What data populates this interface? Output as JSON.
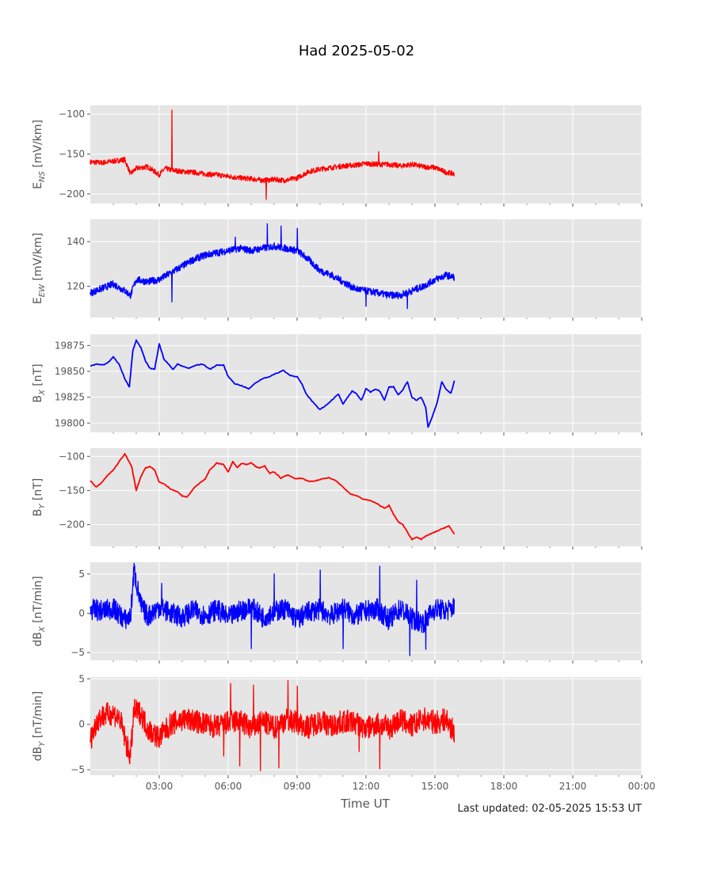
{
  "title": "Had 2025-05-02",
  "xlabel": "Time UT",
  "last_updated": "Last updated: 02-05-2025 15:53 UT",
  "chart_data": [
    {
      "type": "line",
      "id": "ens",
      "ylabel_main": "E",
      "ylabel_sub": "NS",
      "ylabel_unit": " [mV/km]",
      "color": "#ff0000",
      "xlim": [
        0,
        24
      ],
      "ylim": [
        -212,
        -89
      ],
      "yticks": [
        -100,
        -150,
        -200
      ],
      "grid": true,
      "noise": 3.2,
      "x": [
        0,
        0.5,
        1.0,
        1.5,
        1.75,
        2.0,
        2.5,
        3.0,
        3.25,
        3.5,
        4.0,
        4.5,
        5.0,
        5.5,
        6.0,
        6.5,
        7.0,
        7.5,
        8.0,
        8.5,
        9.0,
        9.5,
        10.0,
        10.5,
        11.0,
        11.5,
        12.0,
        12.5,
        13.0,
        13.5,
        14.0,
        14.5,
        15.0,
        15.5,
        15.85
      ],
      "y": [
        -160,
        -161,
        -159,
        -157,
        -175,
        -168,
        -166,
        -176,
        -168,
        -170,
        -172,
        -173,
        -175,
        -176,
        -178,
        -180,
        -181,
        -183,
        -182,
        -183,
        -180,
        -172,
        -169,
        -167,
        -165,
        -164,
        -162,
        -163,
        -163,
        -165,
        -163,
        -166,
        -167,
        -173,
        -175
      ],
      "spikes": [
        [
          3.55,
          -95
        ],
        [
          7.65,
          -207
        ],
        [
          12.55,
          -147
        ]
      ]
    },
    {
      "type": "line",
      "id": "eew",
      "ylabel_main": "E",
      "ylabel_sub": "EW",
      "ylabel_unit": " [mV/km]",
      "color": "#0000ff",
      "xlim": [
        0,
        24
      ],
      "ylim": [
        106,
        150
      ],
      "yticks": [
        120,
        140
      ],
      "grid": true,
      "noise": 1.6,
      "x": [
        0,
        0.5,
        1.0,
        1.5,
        1.75,
        2.0,
        2.5,
        3.0,
        3.5,
        4.0,
        4.5,
        5.0,
        5.5,
        6.0,
        6.5,
        7.0,
        7.5,
        8.0,
        8.5,
        9.0,
        9.5,
        10.0,
        10.5,
        11.0,
        11.5,
        12.0,
        12.5,
        13.0,
        13.5,
        14.0,
        14.5,
        15.0,
        15.5,
        15.85
      ],
      "y": [
        117,
        119,
        121,
        118,
        116,
        123,
        122,
        123,
        126,
        129,
        132,
        134,
        135,
        136,
        137,
        136,
        137,
        138,
        137,
        136,
        132,
        127,
        125,
        122,
        119,
        118,
        117,
        116,
        116,
        118,
        120,
        123,
        125,
        124
      ],
      "spikes": [
        [
          7.7,
          148
        ],
        [
          8.3,
          147
        ],
        [
          9.0,
          146
        ],
        [
          3.55,
          113
        ],
        [
          12.0,
          111
        ],
        [
          13.8,
          110
        ],
        [
          6.3,
          142
        ]
      ]
    },
    {
      "type": "line",
      "id": "bx",
      "ylabel_main": "B",
      "ylabel_sub": "X",
      "ylabel_unit": " [nT]",
      "color": "#0000ff",
      "xlim": [
        0,
        24
      ],
      "ylim": [
        19791,
        19886
      ],
      "yticks": [
        19800,
        19825,
        19850,
        19875
      ],
      "grid": true,
      "noise": 0,
      "x": [
        0,
        0.25,
        0.5,
        0.75,
        1.0,
        1.25,
        1.5,
        1.7,
        1.85,
        2.0,
        2.2,
        2.4,
        2.6,
        2.8,
        3.0,
        3.2,
        3.4,
        3.6,
        3.8,
        4.0,
        4.3,
        4.6,
        4.9,
        5.2,
        5.5,
        5.8,
        6.0,
        6.3,
        6.6,
        6.9,
        7.2,
        7.5,
        7.8,
        8.1,
        8.4,
        8.7,
        9.0,
        9.2,
        9.4,
        9.7,
        10.0,
        10.3,
        10.6,
        10.8,
        11.0,
        11.2,
        11.4,
        11.6,
        11.8,
        12.0,
        12.2,
        12.4,
        12.6,
        12.8,
        13.0,
        13.2,
        13.4,
        13.6,
        13.8,
        14.0,
        14.2,
        14.4,
        14.6,
        14.7,
        14.9,
        15.1,
        15.3,
        15.5,
        15.7,
        15.85
      ],
      "y": [
        19855,
        19857,
        19856,
        19858,
        19864,
        19857,
        19843,
        19835,
        19870,
        19880,
        19873,
        19860,
        19853,
        19852,
        19877,
        19862,
        19857,
        19852,
        19857,
        19855,
        19853,
        19856,
        19857,
        19852,
        19856,
        19856,
        19845,
        19838,
        19836,
        19833,
        19839,
        19843,
        19845,
        19848,
        19851,
        19846,
        19845,
        19838,
        19828,
        19820,
        19813,
        19818,
        19824,
        19828,
        19818,
        19825,
        19831,
        19828,
        19822,
        19833,
        19830,
        19833,
        19831,
        19822,
        19835,
        19835,
        19827,
        19832,
        19840,
        19825,
        19822,
        19825,
        19815,
        19796,
        19807,
        19820,
        19840,
        19832,
        19829,
        19841
      ],
      "spikes": []
    },
    {
      "type": "line",
      "id": "by",
      "ylabel_main": "B",
      "ylabel_sub": "Y",
      "ylabel_unit": " [nT]",
      "color": "#ff0000",
      "xlim": [
        0,
        24
      ],
      "ylim": [
        -232,
        -88
      ],
      "yticks": [
        -100,
        -150,
        -200
      ],
      "grid": true,
      "noise": 0,
      "x": [
        0,
        0.25,
        0.5,
        0.75,
        1.0,
        1.25,
        1.5,
        1.8,
        2.0,
        2.2,
        2.4,
        2.6,
        2.8,
        3.0,
        3.2,
        3.5,
        3.8,
        4.0,
        4.2,
        4.5,
        4.8,
        5.0,
        5.2,
        5.5,
        5.8,
        6.0,
        6.2,
        6.4,
        6.6,
        6.8,
        7.0,
        7.2,
        7.4,
        7.6,
        7.8,
        8.0,
        8.3,
        8.6,
        8.9,
        9.2,
        9.5,
        9.8,
        10.1,
        10.4,
        10.7,
        11.0,
        11.3,
        11.6,
        11.9,
        12.2,
        12.5,
        12.8,
        13.0,
        13.2,
        13.4,
        13.6,
        13.8,
        14.0,
        14.2,
        14.4,
        14.6,
        14.8,
        15.0,
        15.2,
        15.4,
        15.6,
        15.85
      ],
      "y": [
        -135,
        -145,
        -138,
        -128,
        -120,
        -108,
        -96,
        -115,
        -150,
        -130,
        -117,
        -115,
        -120,
        -138,
        -140,
        -148,
        -152,
        -158,
        -160,
        -147,
        -138,
        -133,
        -120,
        -110,
        -112,
        -123,
        -108,
        -116,
        -110,
        -112,
        -109,
        -115,
        -117,
        -114,
        -125,
        -123,
        -132,
        -127,
        -133,
        -132,
        -137,
        -136,
        -133,
        -131,
        -136,
        -145,
        -155,
        -158,
        -163,
        -165,
        -170,
        -176,
        -172,
        -185,
        -196,
        -200,
        -211,
        -222,
        -218,
        -222,
        -217,
        -214,
        -211,
        -208,
        -205,
        -202,
        -214
      ],
      "spikes": []
    },
    {
      "type": "line",
      "id": "dbx",
      "ylabel_main": "dB",
      "ylabel_sub": "X",
      "ylabel_unit": " [nT/min]",
      "color": "#0000ff",
      "xlim": [
        0,
        24
      ],
      "ylim": [
        -6,
        6.5
      ],
      "yticks": [
        5,
        0,
        -5
      ],
      "grid": true,
      "noise": 1.35,
      "x": [
        0,
        0.5,
        1.0,
        1.5,
        1.75,
        1.9,
        2.2,
        2.5,
        3.0,
        3.5,
        4.0,
        4.5,
        5.0,
        5.5,
        6.0,
        6.5,
        7.0,
        7.5,
        8.0,
        8.5,
        9.0,
        9.5,
        10.0,
        10.5,
        11.0,
        11.5,
        12.0,
        12.5,
        13.0,
        13.5,
        14.0,
        14.5,
        15.0,
        15.5,
        15.85
      ],
      "y": [
        0.5,
        0.3,
        0.6,
        -0.8,
        -0.5,
        5.5,
        1.0,
        -0.4,
        0.8,
        0,
        -0.5,
        0.4,
        -0.3,
        0.5,
        -0.6,
        0.3,
        0.8,
        -0.5,
        0.2,
        0.6,
        -0.8,
        0.2,
        0.5,
        -0.3,
        0.7,
        -0.4,
        0.3,
        0.5,
        -0.8,
        0.6,
        -0.7,
        -1.2,
        0.6,
        0.3,
        0.8
      ],
      "spikes": [
        [
          8.0,
          5.0
        ],
        [
          10.0,
          5.5
        ],
        [
          11.0,
          -4.5
        ],
        [
          12.6,
          6.0
        ],
        [
          13.9,
          -5.4
        ],
        [
          14.6,
          -4.6
        ],
        [
          14.2,
          4.2
        ],
        [
          7.0,
          -4.5
        ],
        [
          3.1,
          3.8
        ]
      ]
    },
    {
      "type": "line",
      "id": "dby",
      "ylabel_main": "dB",
      "ylabel_sub": "Y",
      "ylabel_unit": " [nT/min]",
      "color": "#ff0000",
      "xlim": [
        0,
        24
      ],
      "ylim": [
        -5.6,
        5.2
      ],
      "yticks": [
        5,
        0,
        -5
      ],
      "grid": true,
      "noise": 1.3,
      "x": [
        0,
        0.3,
        0.6,
        1.0,
        1.3,
        1.6,
        1.75,
        1.9,
        2.2,
        2.5,
        3.0,
        3.5,
        4.0,
        4.5,
        5.0,
        5.5,
        6.0,
        6.5,
        7.0,
        7.5,
        8.0,
        8.5,
        9.0,
        9.5,
        10.0,
        10.5,
        11.0,
        11.5,
        12.0,
        12.5,
        13.0,
        13.5,
        14.0,
        14.5,
        15.0,
        15.5,
        15.85
      ],
      "y": [
        -1.8,
        0.5,
        1.0,
        1.2,
        0.5,
        -2.5,
        -3.5,
        1.5,
        1.2,
        -0.5,
        -1.5,
        0,
        0.5,
        0.4,
        0,
        -0.3,
        0.2,
        0.4,
        -0.5,
        0.3,
        -0.4,
        0.5,
        0.2,
        -0.3,
        0.4,
        -0.2,
        0.3,
        0.2,
        -0.5,
        0.1,
        -0.4,
        0.5,
        -0.2,
        0.6,
        0.2,
        0.5,
        -1.0
      ],
      "spikes": [
        [
          6.1,
          4.5
        ],
        [
          6.5,
          -4.6
        ],
        [
          7.4,
          -5.1
        ],
        [
          8.2,
          -4.8
        ],
        [
          7.1,
          4.3
        ],
        [
          8.6,
          4.8
        ],
        [
          9.0,
          4.2
        ],
        [
          12.6,
          -4.9
        ],
        [
          5.8,
          -3.5
        ],
        [
          11.7,
          -3.0
        ]
      ]
    }
  ],
  "xaxis": {
    "ticks": [
      3,
      6,
      9,
      12,
      15,
      18,
      21,
      24
    ],
    "tick_labels": [
      "03:00",
      "06:00",
      "09:00",
      "12:00",
      "15:00",
      "18:00",
      "21:00",
      "00:00"
    ],
    "minor_ticks": [
      1,
      2,
      4,
      5,
      7,
      8,
      10,
      11,
      13,
      14,
      16,
      17,
      19,
      20,
      22,
      23
    ]
  }
}
